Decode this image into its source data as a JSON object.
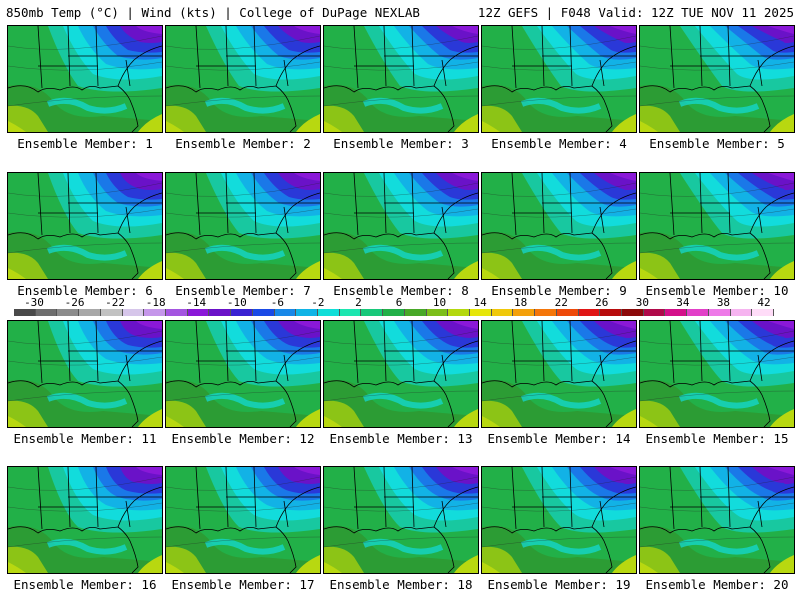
{
  "header": {
    "left": "850mb Temp (°C) | Wind (kts) | College of DuPage NEXLAB",
    "right": "12Z GEFS | F048 Valid: 12Z TUE NOV 11 2025"
  },
  "panel_label_prefix": "Ensemble Member: ",
  "members": [
    1,
    2,
    3,
    4,
    5,
    6,
    7,
    8,
    9,
    10,
    11,
    12,
    13,
    14,
    15,
    16,
    17,
    18,
    19,
    20
  ],
  "colorbar": {
    "ticks": [
      "-30",
      "-26",
      "-22",
      "-18",
      "-14",
      "-10",
      "-6",
      "-2",
      "2",
      "6",
      "10",
      "14",
      "18",
      "22",
      "26",
      "30",
      "34",
      "38",
      "42"
    ],
    "colors": [
      "#4a4a4a",
      "#6e6e6e",
      "#8c8c8c",
      "#a8a8a8",
      "#c2c2c2",
      "#d6c6ea",
      "#c596ea",
      "#a455e0",
      "#8a18d8",
      "#6a12c8",
      "#3a22d2",
      "#1a4ae6",
      "#1888e8",
      "#10b4e6",
      "#10ded8",
      "#1ce6b0",
      "#18c87a",
      "#22b048",
      "#48a828",
      "#7cbe1a",
      "#b4d80e",
      "#e6e60a",
      "#f0c80a",
      "#f4a00a",
      "#f4760a",
      "#ee4a0a",
      "#e01616",
      "#b80c0c",
      "#8c0a0a",
      "#b00a4a",
      "#d4108a",
      "#e240c8",
      "#ee7ae8",
      "#f6b4f0",
      "#ffdcf8"
    ]
  },
  "map_colors": {
    "purple": "#8a18d8",
    "violet": "#6a12c8",
    "blue": "#2a38d8",
    "lightblue": "#1a78e8",
    "sky": "#12b2e6",
    "cyan": "#12dcdc",
    "teal": "#18c8a0",
    "green": "#22b048",
    "darkgreen": "#2c9c34",
    "lime": "#8cc416",
    "yellowgreen": "#b8d810",
    "yellow": "#e6e60a"
  }
}
